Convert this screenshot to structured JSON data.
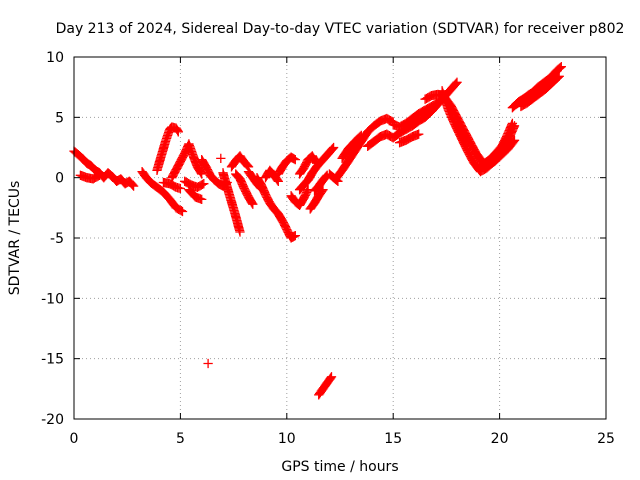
{
  "chart_data": {
    "type": "scatter",
    "title": "Day 213 of 2024, Sidereal Day-to-day VTEC variation (SDTVAR) for receiver p802",
    "xlabel": "GPS time / hours",
    "ylabel": "SDTVAR / TECUs",
    "xlim": [
      0,
      25
    ],
    "ylim": [
      -20,
      10
    ],
    "xticks": [
      0,
      5,
      10,
      15,
      20,
      25
    ],
    "yticks": [
      -20,
      -15,
      -10,
      -5,
      0,
      5,
      10
    ],
    "xtick_labels": [
      "0",
      "5",
      "10",
      "15",
      "20",
      "25"
    ],
    "ytick_labels": [
      "-20",
      "-15",
      "-10",
      "-5",
      "0",
      "5",
      "10"
    ],
    "grid": true,
    "marker": "+",
    "color": "#ff0000",
    "series": [
      {
        "name": "SDTVAR",
        "segments": [
          [
            [
              0.0,
              2.2
            ],
            [
              0.2,
              1.9
            ],
            [
              0.4,
              1.6
            ],
            [
              0.6,
              1.2
            ],
            [
              0.8,
              1.0
            ],
            [
              1.0,
              0.6
            ],
            [
              1.2,
              0.4
            ],
            [
              1.4,
              0.0
            ],
            [
              1.6,
              0.4
            ],
            [
              1.8,
              0.1
            ],
            [
              2.0,
              -0.3
            ],
            [
              2.2,
              -0.1
            ],
            [
              2.4,
              -0.5
            ],
            [
              2.6,
              -0.3
            ],
            [
              2.8,
              -0.7
            ]
          ],
          [
            [
              0.3,
              0.2
            ],
            [
              0.6,
              0.0
            ],
            [
              0.9,
              -0.1
            ],
            [
              1.2,
              0.2
            ]
          ],
          [
            [
              3.2,
              0.5
            ],
            [
              3.4,
              0.0
            ],
            [
              3.6,
              -0.4
            ],
            [
              3.9,
              -0.8
            ],
            [
              4.2,
              -1.2
            ],
            [
              4.5,
              -1.8
            ],
            [
              4.8,
              -2.5
            ],
            [
              5.1,
              -2.8
            ]
          ],
          [
            [
              3.9,
              0.6
            ],
            [
              4.1,
              1.8
            ],
            [
              4.3,
              3.0
            ],
            [
              4.5,
              4.0
            ],
            [
              4.6,
              4.2
            ],
            [
              4.8,
              4.1
            ],
            [
              4.9,
              3.8
            ]
          ],
          [
            [
              4.2,
              -0.4
            ],
            [
              4.5,
              -0.5
            ],
            [
              4.8,
              -0.8
            ],
            [
              5.0,
              -0.9
            ]
          ],
          [
            [
              4.6,
              0.0
            ],
            [
              4.9,
              1.0
            ],
            [
              5.2,
              2.0
            ],
            [
              5.4,
              2.8
            ],
            [
              5.6,
              1.8
            ],
            [
              5.8,
              0.9
            ],
            [
              6.0,
              0.3
            ]
          ],
          [
            [
              5.2,
              -0.3
            ],
            [
              5.5,
              -0.6
            ],
            [
              5.8,
              -0.8
            ],
            [
              6.1,
              -0.5
            ]
          ],
          [
            [
              5.4,
              -1.0
            ],
            [
              5.7,
              -1.6
            ],
            [
              6.0,
              -1.8
            ]
          ],
          [
            [
              6.0,
              1.5
            ],
            [
              6.2,
              0.9
            ],
            [
              6.4,
              0.2
            ],
            [
              6.6,
              -0.2
            ],
            [
              6.8,
              -0.5
            ],
            [
              7.0,
              -0.7
            ],
            [
              7.2,
              -0.4
            ]
          ],
          [
            [
              6.3,
              -15.4
            ]
          ],
          [
            [
              6.9,
              1.6
            ]
          ],
          [
            [
              7.0,
              0.4
            ],
            [
              7.2,
              -0.8
            ],
            [
              7.4,
              -2.0
            ],
            [
              7.6,
              -3.2
            ],
            [
              7.8,
              -4.5
            ]
          ],
          [
            [
              7.4,
              0.9
            ],
            [
              7.6,
              1.4
            ],
            [
              7.8,
              1.8
            ],
            [
              8.0,
              1.3
            ],
            [
              8.2,
              0.9
            ]
          ],
          [
            [
              7.6,
              0.3
            ],
            [
              7.8,
              -0.1
            ],
            [
              8.0,
              -0.9
            ],
            [
              8.2,
              -1.6
            ],
            [
              8.4,
              -2.2
            ]
          ],
          [
            [
              8.2,
              0.5
            ],
            [
              8.4,
              0.0
            ],
            [
              8.6,
              -0.5
            ],
            [
              8.8,
              -0.9
            ]
          ],
          [
            [
              8.6,
              0.0
            ],
            [
              8.8,
              -0.6
            ],
            [
              9.0,
              -1.4
            ],
            [
              9.2,
              -2.1
            ],
            [
              9.4,
              -2.6
            ],
            [
              9.6,
              -3.0
            ],
            [
              9.8,
              -3.6
            ],
            [
              10.0,
              -4.3
            ],
            [
              10.2,
              -5.0
            ],
            [
              10.4,
              -4.8
            ]
          ],
          [
            [
              9.0,
              0.0
            ],
            [
              9.2,
              0.6
            ],
            [
              9.4,
              0.2
            ],
            [
              9.6,
              -0.3
            ]
          ],
          [
            [
              9.6,
              0.3
            ],
            [
              9.8,
              0.9
            ],
            [
              10.0,
              1.4
            ],
            [
              10.2,
              1.7
            ],
            [
              10.4,
              1.5
            ]
          ],
          [
            [
              10.2,
              -1.5
            ],
            [
              10.4,
              -2.0
            ],
            [
              10.6,
              -2.3
            ],
            [
              10.8,
              -1.7
            ],
            [
              11.0,
              -1.0
            ]
          ],
          [
            [
              10.6,
              0.3
            ],
            [
              10.8,
              0.8
            ],
            [
              11.0,
              1.5
            ],
            [
              11.2,
              1.8
            ],
            [
              11.4,
              1.2
            ]
          ],
          [
            [
              10.6,
              -1.0
            ],
            [
              10.8,
              -0.6
            ],
            [
              11.0,
              -0.2
            ],
            [
              11.2,
              0.4
            ],
            [
              11.4,
              0.9
            ],
            [
              11.6,
              1.3
            ],
            [
              11.8,
              1.7
            ],
            [
              12.0,
              2.1
            ],
            [
              12.2,
              2.5
            ]
          ],
          [
            [
              11.1,
              -2.6
            ],
            [
              11.3,
              -2.1
            ],
            [
              11.5,
              -1.5
            ],
            [
              11.7,
              -1.0
            ]
          ],
          [
            [
              11.3,
              -1.1
            ],
            [
              11.5,
              -0.7
            ],
            [
              11.7,
              -0.2
            ],
            [
              11.9,
              0.2
            ]
          ],
          [
            [
              11.5,
              -18.0
            ],
            [
              11.7,
              -17.5
            ],
            [
              11.9,
              -17.0
            ],
            [
              12.1,
              -16.5
            ]
          ],
          [
            [
              12.0,
              0.3
            ],
            [
              12.2,
              0.0
            ],
            [
              12.4,
              -0.3
            ]
          ],
          [
            [
              12.3,
              -0.1
            ],
            [
              12.6,
              0.6
            ],
            [
              12.9,
              1.4
            ],
            [
              13.2,
              2.2
            ],
            [
              13.5,
              3.0
            ],
            [
              13.8,
              3.8
            ],
            [
              14.1,
              4.3
            ],
            [
              14.4,
              4.7
            ],
            [
              14.7,
              4.9
            ],
            [
              15.0,
              4.6
            ]
          ],
          [
            [
              12.6,
              1.6
            ],
            [
              12.9,
              2.4
            ],
            [
              13.2,
              3.0
            ],
            [
              13.5,
              3.5
            ]
          ],
          [
            [
              13.8,
              2.6
            ],
            [
              14.1,
              3.0
            ],
            [
              14.4,
              3.4
            ],
            [
              14.7,
              3.6
            ],
            [
              15.0,
              3.3
            ],
            [
              15.3,
              3.7
            ],
            [
              15.6,
              4.0
            ],
            [
              15.9,
              4.3
            ],
            [
              16.2,
              4.7
            ],
            [
              16.5,
              5.0
            ],
            [
              16.8,
              5.5
            ],
            [
              17.1,
              6.1
            ],
            [
              17.4,
              6.7
            ],
            [
              17.7,
              7.3
            ],
            [
              18.0,
              7.9
            ]
          ],
          [
            [
              15.0,
              4.4
            ],
            [
              15.3,
              4.2
            ],
            [
              15.6,
              4.5
            ],
            [
              15.9,
              4.9
            ],
            [
              16.2,
              5.3
            ],
            [
              16.5,
              5.6
            ],
            [
              16.8,
              5.9
            ],
            [
              17.1,
              6.2
            ]
          ],
          [
            [
              15.3,
              2.9
            ],
            [
              15.6,
              3.1
            ],
            [
              15.9,
              3.4
            ],
            [
              16.2,
              3.6
            ]
          ],
          [
            [
              16.5,
              6.5
            ],
            [
              16.8,
              6.8
            ],
            [
              17.1,
              6.9
            ],
            [
              17.4,
              6.7
            ],
            [
              17.7,
              6.0
            ],
            [
              18.0,
              5.0
            ],
            [
              18.3,
              4.0
            ],
            [
              18.6,
              3.0
            ],
            [
              18.9,
              2.0
            ],
            [
              19.2,
              1.3
            ],
            [
              19.5,
              1.0
            ],
            [
              19.8,
              1.4
            ],
            [
              20.1,
              1.9
            ],
            [
              20.4,
              2.4
            ],
            [
              20.7,
              3.1
            ]
          ],
          [
            [
              17.3,
              7.2
            ],
            [
              17.6,
              5.6
            ],
            [
              17.9,
              4.4
            ],
            [
              18.2,
              3.3
            ],
            [
              18.5,
              2.2
            ],
            [
              18.8,
              1.2
            ],
            [
              19.1,
              0.5
            ],
            [
              19.4,
              0.8
            ],
            [
              19.7,
              1.3
            ],
            [
              20.0,
              2.2
            ],
            [
              20.3,
              3.3
            ],
            [
              20.6,
              4.5
            ]
          ],
          [
            [
              19.0,
              0.8
            ],
            [
              19.3,
              1.2
            ],
            [
              19.6,
              1.6
            ],
            [
              19.9,
              2.2
            ],
            [
              20.2,
              2.8
            ],
            [
              20.5,
              3.5
            ],
            [
              20.7,
              4.3
            ]
          ],
          [
            [
              20.6,
              5.8
            ],
            [
              20.9,
              6.3
            ],
            [
              21.2,
              6.6
            ],
            [
              21.5,
              7.0
            ],
            [
              21.8,
              7.5
            ],
            [
              22.1,
              7.9
            ],
            [
              22.4,
              8.3
            ],
            [
              22.7,
              8.9
            ],
            [
              22.9,
              9.2
            ]
          ],
          [
            [
              20.8,
              6.1
            ],
            [
              21.1,
              6.5
            ],
            [
              21.4,
              6.9
            ],
            [
              21.7,
              7.2
            ],
            [
              22.0,
              7.6
            ],
            [
              22.3,
              8.0
            ],
            [
              22.6,
              8.6
            ]
          ],
          [
            [
              21.0,
              5.9
            ],
            [
              21.3,
              6.2
            ],
            [
              21.6,
              6.6
            ],
            [
              21.9,
              7.0
            ],
            [
              22.2,
              7.4
            ],
            [
              22.5,
              7.9
            ],
            [
              22.8,
              8.4
            ]
          ]
        ]
      }
    ]
  }
}
